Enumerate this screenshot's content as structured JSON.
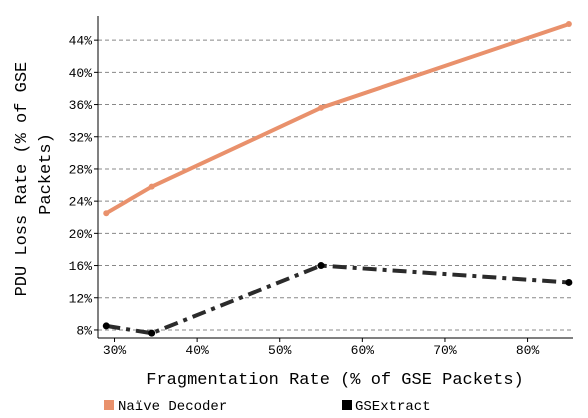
{
  "chart_data": {
    "type": "line",
    "xlabel": "Fragmentation Rate (% of GSE Packets)",
    "ylabel_lines": [
      "PDU Loss Rate (% of GSE",
      "Packets)"
    ],
    "xlim": [
      28,
      85.5
    ],
    "ylim": [
      7,
      47
    ],
    "x_ticks": [
      30,
      40,
      50,
      60,
      70,
      80
    ],
    "x_tick_labels": [
      "30%",
      "40%",
      "50%",
      "60%",
      "70%",
      "80%"
    ],
    "y_ticks": [
      8,
      12,
      16,
      20,
      24,
      28,
      32,
      36,
      40,
      44
    ],
    "y_tick_labels": [
      "8%",
      "12%",
      "16%",
      "20%",
      "24%",
      "28%",
      "32%",
      "36%",
      "40%",
      "44%"
    ],
    "grid": "horizontal-dashed",
    "legend_position": "bottom",
    "series": [
      {
        "name": "Naïve Decoder",
        "color": "#E9916C",
        "line_style": "solid",
        "x": [
          29,
          34.5,
          55,
          85
        ],
        "y": [
          22.5,
          25.8,
          35.6,
          46
        ]
      },
      {
        "name": "GSExtract",
        "color": "#2b2b2b",
        "line_style": "dash-dot",
        "x": [
          29,
          34.5,
          55,
          85
        ],
        "y": [
          8.5,
          7.6,
          16,
          13.9
        ]
      }
    ]
  }
}
